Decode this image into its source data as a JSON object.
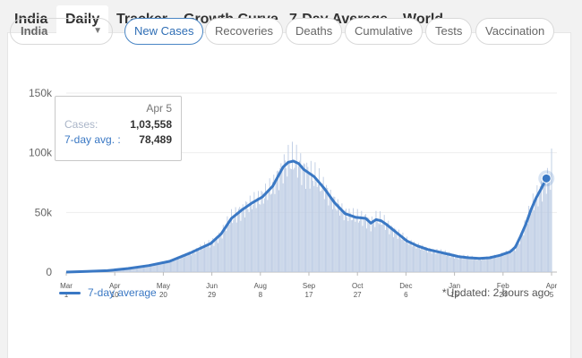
{
  "nav": {
    "tabs": [
      {
        "label": "India",
        "active": false
      },
      {
        "label": "Daily",
        "active": true
      },
      {
        "label": "Tracker",
        "active": false
      },
      {
        "label": "Growth Curve",
        "active": false
      },
      {
        "label": "7-Day Average",
        "active": false
      },
      {
        "label": "World",
        "active": false
      }
    ]
  },
  "filters": {
    "region_select": "India",
    "pills": [
      {
        "label": "New Cases",
        "active": true
      },
      {
        "label": "Recoveries",
        "active": false
      },
      {
        "label": "Deaths",
        "active": false
      },
      {
        "label": "Cumulative",
        "active": false
      },
      {
        "label": "Tests",
        "active": false
      },
      {
        "label": "Vaccination",
        "active": false
      }
    ]
  },
  "tooltip": {
    "date": "Apr 5",
    "cases_label": "Cases:",
    "cases_value": "1,03,558",
    "avg_label": "7-day avg. :",
    "avg_value": "78,489"
  },
  "legend": {
    "label": "7-day average"
  },
  "updated": "*Updated: 2 hours ago",
  "colors": {
    "accent": "#3a78c4",
    "bars": "#bccbe3",
    "tab_bg": "#ffffff"
  },
  "chart_data": {
    "type": "bar",
    "y_ticks": [
      "0",
      "50k",
      "100k",
      "150k"
    ],
    "ylim": [
      0,
      150000
    ],
    "x_ticks": [
      [
        "Mar",
        "1"
      ],
      [
        "Apr",
        "10"
      ],
      [
        "May",
        "20"
      ],
      [
        "Jun",
        "29"
      ],
      [
        "Aug",
        "8"
      ],
      [
        "Sep",
        "17"
      ],
      [
        "Oct",
        "27"
      ],
      [
        "Dec",
        "6"
      ],
      [
        "Jan",
        "15"
      ],
      [
        "Feb",
        "24"
      ],
      [
        "Apr",
        "5"
      ]
    ],
    "series": [
      {
        "name": "7-day average",
        "type": "line",
        "points": [
          [
            0,
            0
          ],
          [
            20,
            500
          ],
          [
            40,
            1200
          ],
          [
            60,
            3000
          ],
          [
            80,
            5500
          ],
          [
            100,
            9000
          ],
          [
            120,
            16000
          ],
          [
            140,
            24000
          ],
          [
            150,
            32000
          ],
          [
            160,
            45000
          ],
          [
            170,
            52000
          ],
          [
            180,
            58000
          ],
          [
            190,
            63000
          ],
          [
            200,
            72000
          ],
          [
            205,
            80000
          ],
          [
            210,
            88000
          ],
          [
            215,
            92000
          ],
          [
            220,
            93000
          ],
          [
            225,
            91000
          ],
          [
            230,
            86000
          ],
          [
            240,
            80000
          ],
          [
            250,
            70000
          ],
          [
            260,
            58000
          ],
          [
            270,
            49000
          ],
          [
            280,
            46000
          ],
          [
            290,
            45000
          ],
          [
            295,
            41000
          ],
          [
            300,
            44000
          ],
          [
            305,
            43000
          ],
          [
            310,
            40000
          ],
          [
            320,
            33000
          ],
          [
            330,
            26000
          ],
          [
            340,
            22000
          ],
          [
            350,
            19000
          ],
          [
            360,
            17000
          ],
          [
            370,
            15000
          ],
          [
            380,
            13000
          ],
          [
            390,
            12000
          ],
          [
            400,
            11500
          ],
          [
            410,
            12000
          ],
          [
            420,
            14000
          ],
          [
            430,
            17000
          ],
          [
            435,
            21000
          ],
          [
            440,
            30000
          ],
          [
            445,
            40000
          ],
          [
            450,
            52000
          ],
          [
            455,
            62000
          ],
          [
            460,
            70000
          ],
          [
            465,
            78489
          ]
        ]
      }
    ],
    "x_domain": [
      0,
      470
    ]
  }
}
